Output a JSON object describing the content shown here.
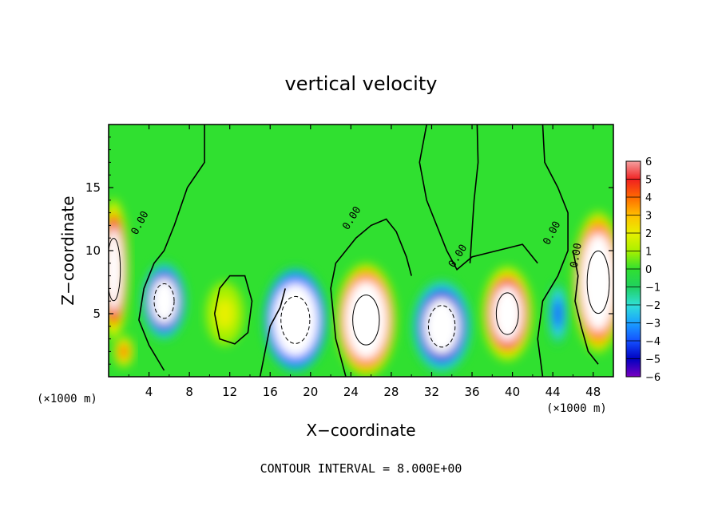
{
  "chart_data": {
    "type": "heatmap",
    "title": "vertical velocity",
    "xlabel": "X−coordinate",
    "ylabel": "Z−coordinate",
    "x_unit_left": "(×1000 m)",
    "x_unit_right": "(×1000 m)",
    "footer": "CONTOUR INTERVAL = 8.000E+00",
    "xlim": [
      0,
      50
    ],
    "ylim": [
      0,
      20
    ],
    "xticks": [
      "4",
      "8",
      "12",
      "16",
      "20",
      "24",
      "28",
      "32",
      "36",
      "40",
      "44",
      "48"
    ],
    "yticks": [
      "5",
      "10",
      "15"
    ],
    "colorbar": {
      "range": [
        -6,
        6
      ],
      "labels": [
        "6",
        "5",
        "4",
        "3",
        "2",
        "1",
        "0",
        "−1",
        "−2",
        "−3",
        "−4",
        "−5",
        "−6"
      ],
      "colors": [
        "#f4a0a0",
        "#f02020",
        "#ff6a00",
        "#ffbf00",
        "#e8f000",
        "#a8f000",
        "#30e030",
        "#20d060",
        "#30e0d8",
        "#1aa0ff",
        "#1450ff",
        "#0000c0",
        "#7a00c0"
      ]
    },
    "contour_labels": [
      "0.00",
      "0.00",
      "0.00",
      "0.00",
      "0.00"
    ],
    "features": [
      {
        "kind": "updraft",
        "x": 0.5,
        "z": 8.5,
        "rx": 1.2,
        "rz": 4.5,
        "w": 12
      },
      {
        "kind": "updraft",
        "x": 1.5,
        "z": 2.0,
        "rx": 0.8,
        "rz": 1.0,
        "w": 4
      },
      {
        "kind": "downdraft",
        "x": 5.5,
        "z": 6.0,
        "rx": 1.8,
        "rz": 2.5,
        "w": -12
      },
      {
        "kind": "updraft",
        "x": 11.5,
        "z": 5.0,
        "rx": 1.5,
        "rz": 2.0,
        "w": 2
      },
      {
        "kind": "downdraft",
        "x": 18.5,
        "z": 4.5,
        "rx": 2.6,
        "rz": 3.4,
        "w": -14
      },
      {
        "kind": "updraft",
        "x": 25.5,
        "z": 4.5,
        "rx": 2.4,
        "rz": 3.6,
        "w": 14
      },
      {
        "kind": "downdraft",
        "x": 33.0,
        "z": 4.0,
        "rx": 2.4,
        "rz": 3.0,
        "w": -12
      },
      {
        "kind": "updraft",
        "x": 39.5,
        "z": 5.0,
        "rx": 2.0,
        "rz": 3.0,
        "w": 12
      },
      {
        "kind": "downdraft",
        "x": 44.5,
        "z": 5.0,
        "rx": 0.8,
        "rz": 2.0,
        "w": -4
      },
      {
        "kind": "updraft",
        "x": 48.5,
        "z": 7.5,
        "rx": 2.0,
        "rz": 4.5,
        "w": 14
      }
    ]
  }
}
